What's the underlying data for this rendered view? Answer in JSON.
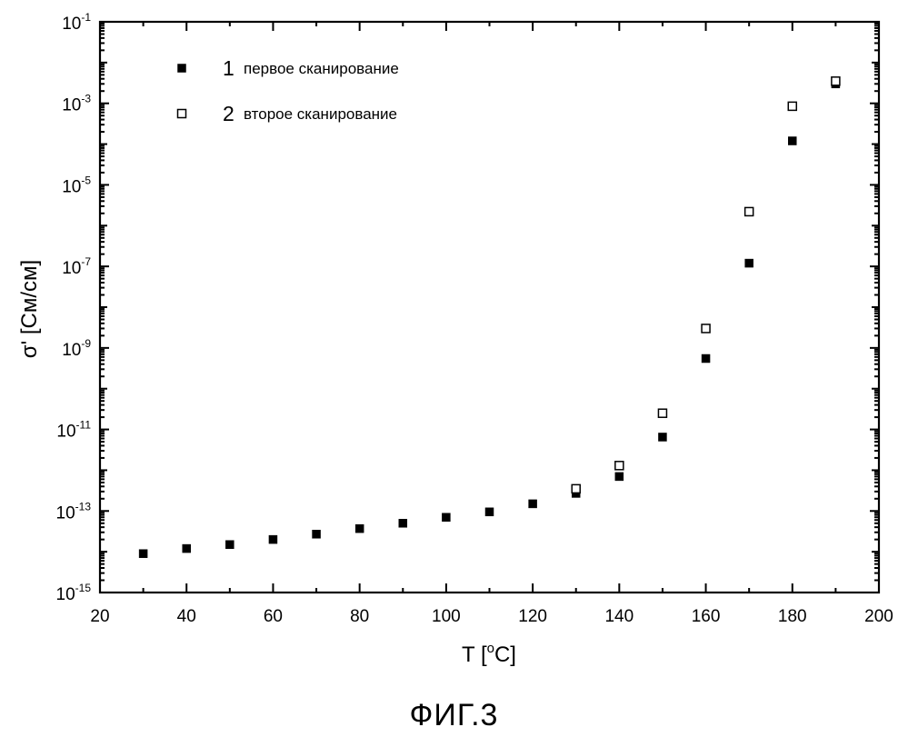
{
  "chart_data": {
    "type": "scatter",
    "xlabel": "T [°C]",
    "xlabel_parts": {
      "main": "T [",
      "sup": "o",
      "tail": "C]"
    },
    "ylabel": "σ' [См/см]",
    "xlim": [
      20,
      200
    ],
    "xticks": [
      20,
      40,
      60,
      80,
      100,
      120,
      140,
      160,
      180,
      200
    ],
    "ylim": [
      1e-15,
      0.1
    ],
    "yscale": "log",
    "ytick_exponents": [
      -15,
      -13,
      -11,
      -9,
      -7,
      -5,
      -3,
      -1
    ],
    "ytick_base": "10",
    "grid": false,
    "legend_position": "top-left",
    "series": [
      {
        "name": "первое сканирование",
        "legend_number": "1",
        "marker": "filled-square",
        "color": "#000000",
        "x": [
          30,
          40,
          50,
          60,
          70,
          80,
          90,
          100,
          110,
          120,
          130,
          140,
          150,
          160,
          170,
          180,
          190
        ],
        "y": [
          9e-15,
          1.2e-14,
          1.5e-14,
          2e-14,
          2.7e-14,
          3.7e-14,
          5e-14,
          7e-14,
          9.5e-14,
          1.5e-13,
          2.7e-13,
          7e-13,
          6.5e-12,
          5.5e-10,
          1.2e-07,
          0.00012,
          0.003
        ]
      },
      {
        "name": "второе сканирование",
        "legend_number": "2",
        "marker": "open-square",
        "color": "#000000",
        "x": [
          130,
          140,
          150,
          160,
          170,
          180,
          190
        ],
        "y": [
          3.5e-13,
          1.3e-12,
          2.5e-11,
          3e-09,
          2.2e-06,
          0.00085,
          0.0035
        ]
      }
    ]
  },
  "caption": "ФИГ.3"
}
